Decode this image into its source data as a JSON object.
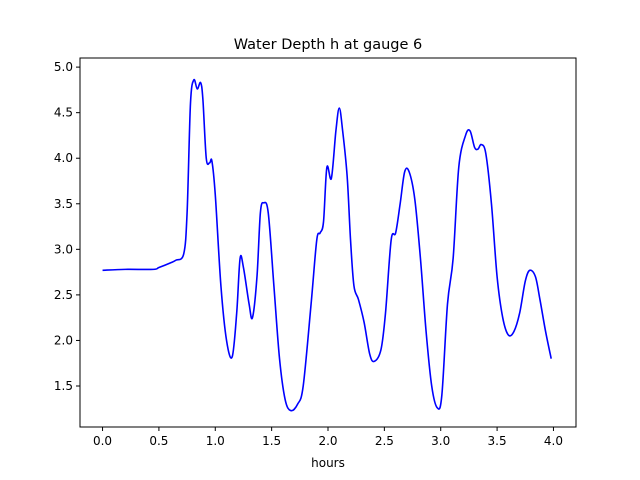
{
  "chart_data": {
    "type": "line",
    "title": "Water Depth h at gauge 6",
    "xlabel": "hours",
    "ylabel": "",
    "xlim": [
      -0.2,
      4.2
    ],
    "ylim": [
      1.05,
      5.1
    ],
    "x_ticks": [
      0.0,
      0.5,
      1.0,
      1.5,
      2.0,
      2.5,
      3.0,
      3.5,
      4.0
    ],
    "x_tick_labels": [
      "0.0",
      "0.5",
      "1.0",
      "1.5",
      "2.0",
      "2.5",
      "3.0",
      "3.5",
      "4.0"
    ],
    "y_ticks": [
      1.5,
      2.0,
      2.5,
      3.0,
      3.5,
      4.0,
      4.5,
      5.0
    ],
    "y_tick_labels": [
      "1.5",
      "2.0",
      "2.5",
      "3.0",
      "3.5",
      "4.0",
      "4.5",
      "5.0"
    ],
    "grid": false,
    "series": [
      {
        "color": "#0000ff",
        "points": [
          [
            0.0,
            2.77
          ],
          [
            0.2,
            2.78
          ],
          [
            0.45,
            2.78
          ],
          [
            0.5,
            2.8
          ],
          [
            0.6,
            2.85
          ],
          [
            0.65,
            2.88
          ],
          [
            0.72,
            2.95
          ],
          [
            0.75,
            3.4
          ],
          [
            0.78,
            4.6
          ],
          [
            0.81,
            4.86
          ],
          [
            0.84,
            4.76
          ],
          [
            0.87,
            4.83
          ],
          [
            0.89,
            4.65
          ],
          [
            0.92,
            4.0
          ],
          [
            0.95,
            3.95
          ],
          [
            0.97,
            3.97
          ],
          [
            1.0,
            3.6
          ],
          [
            1.05,
            2.6
          ],
          [
            1.1,
            2.0
          ],
          [
            1.15,
            1.82
          ],
          [
            1.19,
            2.3
          ],
          [
            1.22,
            2.9
          ],
          [
            1.25,
            2.8
          ],
          [
            1.3,
            2.4
          ],
          [
            1.33,
            2.25
          ],
          [
            1.37,
            2.7
          ],
          [
            1.4,
            3.4
          ],
          [
            1.43,
            3.51
          ],
          [
            1.47,
            3.4
          ],
          [
            1.52,
            2.6
          ],
          [
            1.57,
            1.8
          ],
          [
            1.62,
            1.35
          ],
          [
            1.67,
            1.23
          ],
          [
            1.73,
            1.3
          ],
          [
            1.78,
            1.5
          ],
          [
            1.85,
            2.4
          ],
          [
            1.9,
            3.1
          ],
          [
            1.93,
            3.18
          ],
          [
            1.96,
            3.3
          ],
          [
            1.99,
            3.9
          ],
          [
            2.03,
            3.78
          ],
          [
            2.07,
            4.3
          ],
          [
            2.1,
            4.55
          ],
          [
            2.13,
            4.3
          ],
          [
            2.17,
            3.8
          ],
          [
            2.2,
            3.1
          ],
          [
            2.23,
            2.6
          ],
          [
            2.27,
            2.45
          ],
          [
            2.32,
            2.2
          ],
          [
            2.37,
            1.85
          ],
          [
            2.41,
            1.77
          ],
          [
            2.47,
            1.9
          ],
          [
            2.51,
            2.3
          ],
          [
            2.56,
            3.1
          ],
          [
            2.6,
            3.18
          ],
          [
            2.64,
            3.5
          ],
          [
            2.68,
            3.85
          ],
          [
            2.72,
            3.85
          ],
          [
            2.77,
            3.55
          ],
          [
            2.82,
            2.9
          ],
          [
            2.87,
            2.1
          ],
          [
            2.92,
            1.5
          ],
          [
            2.97,
            1.26
          ],
          [
            3.01,
            1.4
          ],
          [
            3.06,
            2.4
          ],
          [
            3.11,
            2.9
          ],
          [
            3.16,
            3.9
          ],
          [
            3.22,
            4.25
          ],
          [
            3.26,
            4.3
          ],
          [
            3.3,
            4.12
          ],
          [
            3.33,
            4.1
          ],
          [
            3.36,
            4.15
          ],
          [
            3.4,
            4.05
          ],
          [
            3.45,
            3.5
          ],
          [
            3.5,
            2.7
          ],
          [
            3.55,
            2.25
          ],
          [
            3.6,
            2.06
          ],
          [
            3.65,
            2.1
          ],
          [
            3.7,
            2.3
          ],
          [
            3.75,
            2.65
          ],
          [
            3.79,
            2.77
          ],
          [
            3.84,
            2.7
          ],
          [
            3.88,
            2.45
          ],
          [
            3.93,
            2.1
          ],
          [
            3.98,
            1.8
          ]
        ]
      }
    ]
  }
}
